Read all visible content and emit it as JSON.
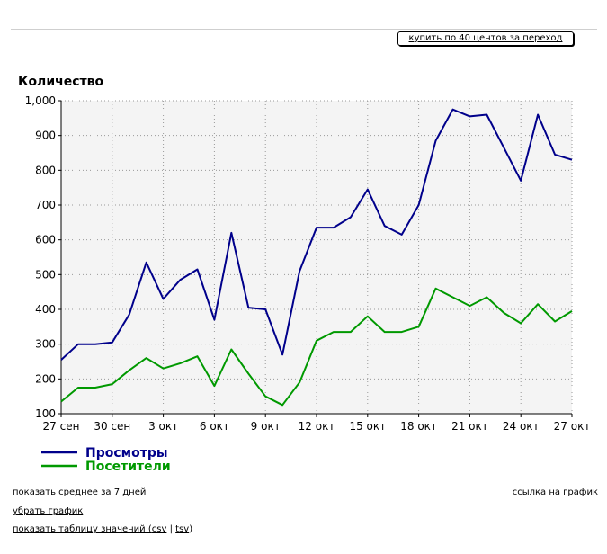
{
  "header": {
    "buy_button_label": "купить по 40 центов за переход"
  },
  "chart_data": {
    "type": "line",
    "ylabel": "Количество",
    "ylim": [
      100,
      1000
    ],
    "yticks": [
      "100",
      "200",
      "300",
      "400",
      "500",
      "600",
      "700",
      "800",
      "900",
      "1,000"
    ],
    "grid": true,
    "legend_position": "bottom-left",
    "x": [
      "27 сен",
      "28 сен",
      "29 сен",
      "30 сен",
      "1 окт",
      "2 окт",
      "3 окт",
      "4 окт",
      "5 окт",
      "6 окт",
      "7 окт",
      "8 окт",
      "9 окт",
      "10 окт",
      "11 окт",
      "12 окт",
      "13 окт",
      "14 окт",
      "15 окт",
      "16 окт",
      "17 окт",
      "18 окт",
      "19 окт",
      "20 окт",
      "21 окт",
      "22 окт",
      "23 окт",
      "24 окт",
      "25 окт",
      "26 окт",
      "27 окт"
    ],
    "xticklabels": [
      "27 сен",
      "30 сен",
      "3 окт",
      "6 окт",
      "9 окт",
      "12 окт",
      "15 окт",
      "18 окт",
      "21 окт",
      "24 окт",
      "27 окт"
    ],
    "series": [
      {
        "name": "Просмотры",
        "color": "#00008b",
        "values": [
          255,
          300,
          300,
          305,
          385,
          535,
          430,
          485,
          515,
          370,
          620,
          405,
          400,
          270,
          510,
          635,
          635,
          665,
          745,
          640,
          615,
          700,
          885,
          975,
          955,
          960,
          865,
          770,
          960,
          845,
          830
        ]
      },
      {
        "name": "Посетители",
        "color": "#009900",
        "values": [
          135,
          175,
          175,
          185,
          225,
          260,
          230,
          245,
          265,
          180,
          285,
          215,
          150,
          125,
          190,
          310,
          335,
          335,
          380,
          335,
          335,
          350,
          460,
          435,
          410,
          435,
          390,
          360,
          415,
          365,
          395
        ]
      }
    ]
  },
  "links": {
    "avg7": "показать среднее за 7 дней",
    "remove": "убрать график",
    "table_prefix": "показать таблицу значений (",
    "csv": "csv",
    "sep": " | ",
    "tsv": "tsv",
    "table_suffix": ")",
    "chart_link": "ссылка на график"
  }
}
